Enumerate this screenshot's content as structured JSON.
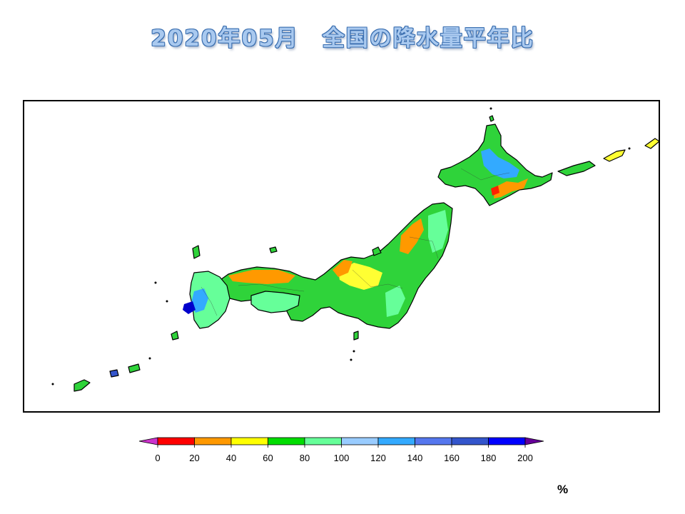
{
  "title": "2020年05月　全国の降水量平年比",
  "map": {
    "region": "Japan",
    "variable": "precipitation ratio to normal",
    "bins": [
      {
        "from": null,
        "to": 0,
        "color": "#cc33cc"
      },
      {
        "from": 0,
        "to": 20,
        "color": "#ff0000"
      },
      {
        "from": 20,
        "to": 40,
        "color": "#ff9900"
      },
      {
        "from": 40,
        "to": 60,
        "color": "#ffff00"
      },
      {
        "from": 60,
        "to": 80,
        "color": "#00dd00"
      },
      {
        "from": 80,
        "to": 100,
        "color": "#66ff99"
      },
      {
        "from": 100,
        "to": 120,
        "color": "#99ccff"
      },
      {
        "from": 120,
        "to": 140,
        "color": "#33aaff"
      },
      {
        "from": 140,
        "to": 160,
        "color": "#5577ee"
      },
      {
        "from": 160,
        "to": 180,
        "color": "#3355cc"
      },
      {
        "from": 180,
        "to": 200,
        "color": "#0000ff"
      },
      {
        "from": 200,
        "to": null,
        "color": "#660099"
      }
    ]
  },
  "legend": {
    "ticks": [
      "0",
      "20",
      "40",
      "60",
      "80",
      "100",
      "120",
      "140",
      "160",
      "180",
      "200"
    ],
    "unit": "%"
  }
}
